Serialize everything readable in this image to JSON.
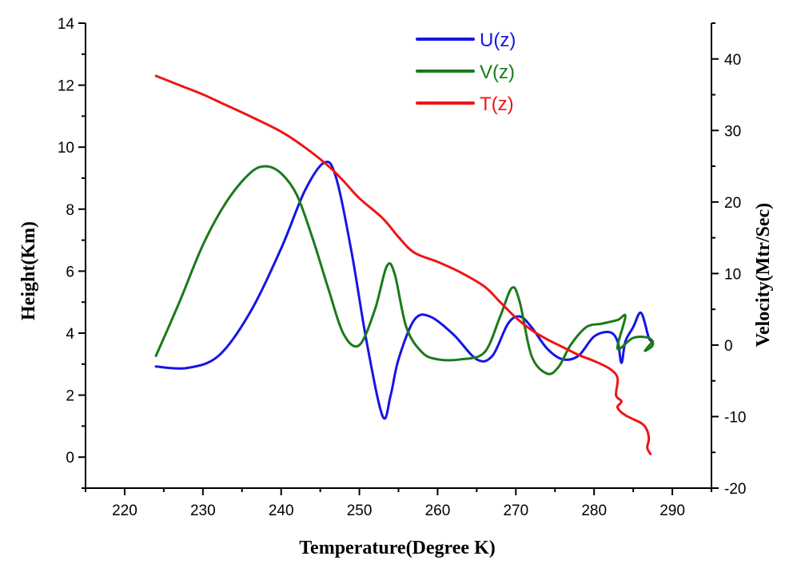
{
  "chart_data": {
    "type": "line",
    "xlabel": "Temperature(Degree K)",
    "ylabel_left": "Height(Km)",
    "ylabel_right": "Velocity(Mtr/Sec)",
    "xlim": [
      215,
      295
    ],
    "ylim_left": [
      -1,
      14
    ],
    "ylim_right": [
      -20,
      45
    ],
    "x_ticks": [
      220,
      230,
      240,
      250,
      260,
      270,
      280,
      290
    ],
    "y_left_ticks": [
      0,
      2,
      4,
      6,
      8,
      10,
      12,
      14
    ],
    "y_right_ticks": [
      -20,
      -10,
      0,
      10,
      20,
      30,
      40
    ],
    "legend_position": "top-center",
    "grid": false,
    "series": [
      {
        "name": "U(z)",
        "color": "#1515e6",
        "axis": "right",
        "x": [
          224,
          228,
          232,
          236,
          240,
          243,
          245.5,
          247,
          249,
          251,
          253,
          254,
          255,
          257,
          259,
          262,
          265,
          267,
          269,
          270.5,
          272,
          274,
          276,
          278,
          280,
          282,
          283,
          283.5,
          284,
          285,
          286,
          287,
          287.5
        ],
        "y": [
          -3,
          -3.2,
          -1.5,
          4.5,
          13.5,
          21.5,
          25.5,
          23.5,
          13,
          0,
          -10,
          -7,
          -2,
          3.5,
          4,
          1.5,
          -2,
          -1.5,
          3,
          4,
          2.5,
          -0.5,
          -2,
          -1.5,
          1.2,
          1.8,
          0.5,
          -2.5,
          0.5,
          2.5,
          4.5,
          1,
          0.5
        ]
      },
      {
        "name": "V(z)",
        "color": "#1a7a1a",
        "axis": "right",
        "x": [
          224,
          227,
          230,
          233,
          236,
          238,
          240,
          242,
          244,
          246,
          248,
          250,
          252,
          253.5,
          254.5,
          256,
          258,
          260,
          263,
          266,
          268,
          269.5,
          270.5,
          272,
          274,
          275.5,
          277,
          279,
          281,
          283,
          284,
          283,
          285,
          287,
          287.5,
          286.5,
          287.5
        ],
        "y": [
          -1.5,
          6,
          14,
          20,
          24,
          25,
          24,
          21,
          15,
          8,
          1.5,
          0,
          5,
          11,
          10,
          2.5,
          -1,
          -2,
          -2,
          -1,
          4,
          8,
          6,
          -1.5,
          -4,
          -3,
          0,
          2.5,
          3,
          3.5,
          4,
          -0.5,
          1,
          1,
          0,
          -0.8,
          0.5
        ]
      },
      {
        "name": "T(z)",
        "color": "#ee1515",
        "axis": "left",
        "x": [
          224,
          227,
          230,
          233,
          236,
          240,
          243,
          246,
          248,
          250,
          253,
          255,
          257,
          260,
          263,
          266,
          268,
          270,
          272,
          274,
          276,
          278,
          280,
          282,
          283,
          282.8,
          283.5,
          283,
          284,
          286,
          286.7,
          287,
          286.8,
          287.2
        ],
        "y": [
          12.3,
          12.0,
          11.7,
          11.35,
          11.0,
          10.5,
          10.0,
          9.4,
          8.9,
          8.35,
          7.7,
          7.1,
          6.6,
          6.3,
          5.95,
          5.5,
          5.0,
          4.5,
          4.1,
          3.8,
          3.55,
          3.3,
          3.1,
          2.85,
          2.55,
          2.0,
          1.8,
          1.6,
          1.35,
          1.1,
          0.9,
          0.6,
          0.3,
          0.1
        ]
      }
    ]
  }
}
